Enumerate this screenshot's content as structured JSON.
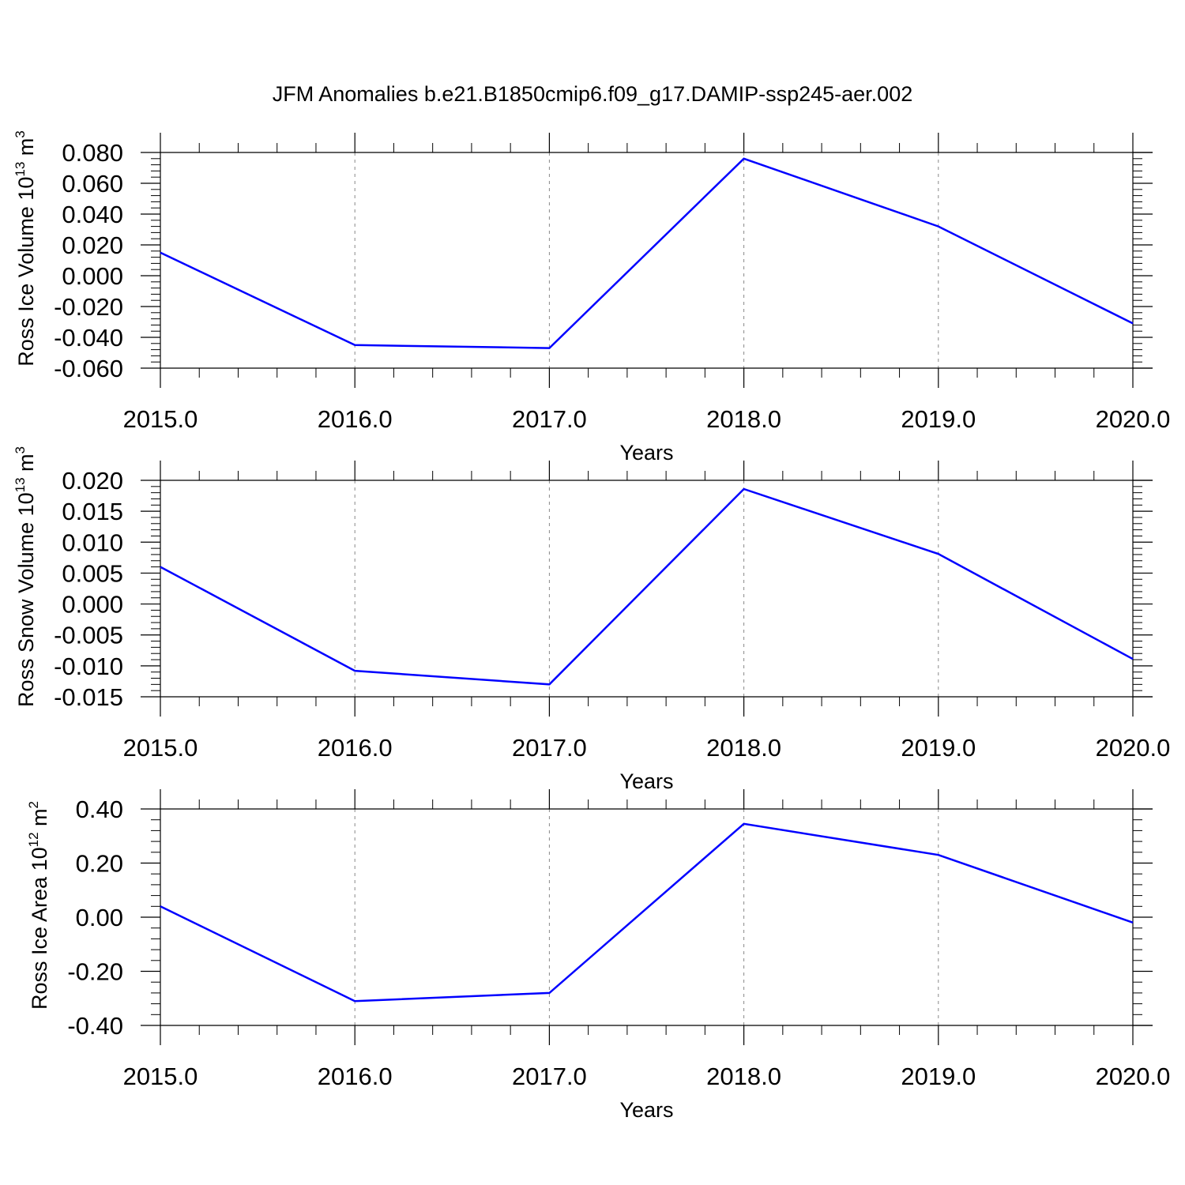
{
  "title": "JFM Anomalies b.e21.B1850cmip6.f09_g17.DAMIP-ssp245-aer.002",
  "colors": {
    "line": "#0000ff",
    "axis": "#000000",
    "grid": "#888888"
  },
  "chart_data": [
    {
      "type": "line",
      "xlabel": "Years",
      "ylabel": {
        "prefix": "Ross Ice Volume 10",
        "exp": "13",
        "unit": " m",
        "unit_exp": "3"
      },
      "x": [
        2015,
        2016,
        2017,
        2018,
        2019,
        2020
      ],
      "values": [
        0.015,
        -0.045,
        -0.047,
        0.076,
        0.032,
        -0.031
      ],
      "xlim": [
        2015,
        2020
      ],
      "ylim": [
        -0.06,
        0.08
      ],
      "xticks": [
        "2015.0",
        "2016.0",
        "2017.0",
        "2018.0",
        "2019.0",
        "2020.0"
      ],
      "yticks": [
        "0.080",
        "0.060",
        "0.040",
        "0.020",
        "0.000",
        "-0.020",
        "-0.040",
        "-0.060"
      ],
      "ytick_values": [
        0.08,
        0.06,
        0.04,
        0.02,
        0.0,
        -0.02,
        -0.04,
        -0.06
      ],
      "grid": "vertical dashed at major x ticks"
    },
    {
      "type": "line",
      "xlabel": "Years",
      "ylabel": {
        "prefix": "Ross Snow Volume 10",
        "exp": "13",
        "unit": " m",
        "unit_exp": "3"
      },
      "x": [
        2015,
        2016,
        2017,
        2018,
        2019,
        2020
      ],
      "values": [
        0.006,
        -0.0108,
        -0.013,
        0.0186,
        0.0081,
        -0.0089
      ],
      "xlim": [
        2015,
        2020
      ],
      "ylim": [
        -0.015,
        0.02
      ],
      "xticks": [
        "2015.0",
        "2016.0",
        "2017.0",
        "2018.0",
        "2019.0",
        "2020.0"
      ],
      "yticks": [
        "0.020",
        "0.015",
        "0.010",
        "0.005",
        "0.000",
        "-0.005",
        "-0.010",
        "-0.015"
      ],
      "ytick_values": [
        0.02,
        0.015,
        0.01,
        0.005,
        0.0,
        -0.005,
        -0.01,
        -0.015
      ],
      "grid": "vertical dashed at major x ticks"
    },
    {
      "type": "line",
      "xlabel": "Years",
      "ylabel": {
        "prefix": "Ross Ice Area 10",
        "exp": "12",
        "unit": " m",
        "unit_exp": "2"
      },
      "x": [
        2015,
        2016,
        2017,
        2018,
        2019,
        2020
      ],
      "values": [
        0.04,
        -0.31,
        -0.28,
        0.345,
        0.23,
        -0.02
      ],
      "xlim": [
        2015,
        2020
      ],
      "ylim": [
        -0.4,
        0.4
      ],
      "xticks": [
        "2015.0",
        "2016.0",
        "2017.0",
        "2018.0",
        "2019.0",
        "2020.0"
      ],
      "yticks": [
        "0.40",
        "0.20",
        "0.00",
        "-0.20",
        "-0.40"
      ],
      "ytick_values": [
        0.4,
        0.2,
        0.0,
        -0.2,
        -0.4
      ],
      "grid": "vertical dashed at major x ticks"
    }
  ]
}
